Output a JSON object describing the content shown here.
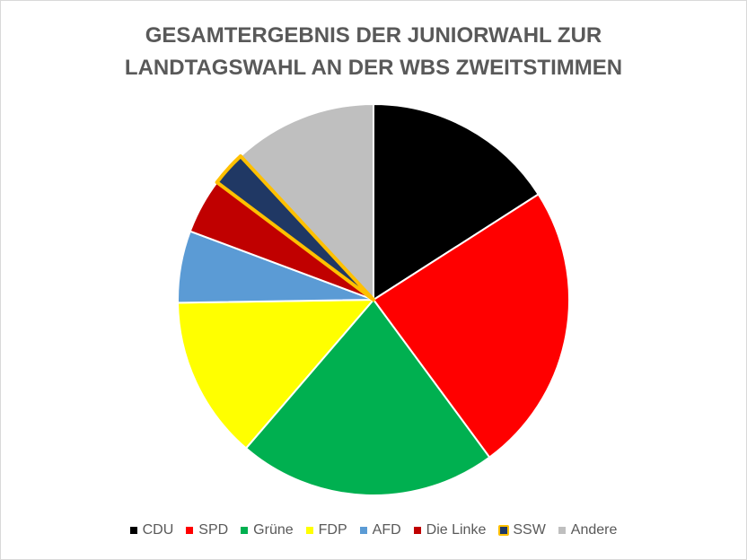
{
  "chart_data": {
    "type": "pie",
    "title_lines": [
      "GESAMTERGEBNIS DER JUNIORWAHL ZUR",
      "LANDTAGSWAHL AN DER WBS ZWEITSTIMMEN"
    ],
    "categories": [
      "CDU",
      "SPD",
      "Grüne",
      "FDP",
      "AFD",
      "Die Linke",
      "SSW",
      "Andere"
    ],
    "values": [
      16.1,
      24.2,
      21.6,
      13.6,
      6.0,
      4.6,
      2.9,
      12.0
    ],
    "colors": [
      "#000000",
      "#FF0000",
      "#00B050",
      "#FFFF00",
      "#5B9BD5",
      "#C00000",
      "#203864",
      "#BFBFBF"
    ],
    "highlight": {
      "category": "SSW",
      "outline_color": "#FFC000"
    },
    "legend_position": "bottom",
    "start_angle": "12 o'clock",
    "direction": "clockwise"
  }
}
